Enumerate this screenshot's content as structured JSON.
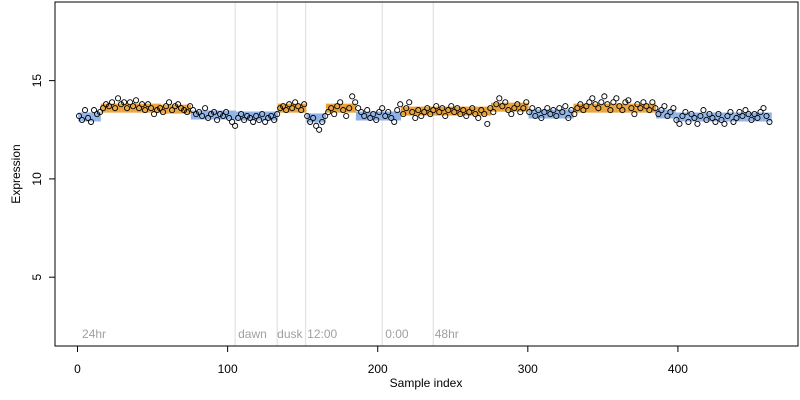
{
  "chart_data": {
    "type": "scatter",
    "title": "",
    "xlabel": "Sample index",
    "ylabel": "Expression",
    "xlim": [
      -15,
      480
    ],
    "ylim": [
      1.5,
      19
    ],
    "x_ticks": [
      0,
      100,
      200,
      300,
      400
    ],
    "y_ticks": [
      5,
      10,
      15
    ],
    "grid": false,
    "legend": "none",
    "phase_boundaries": [
      105,
      133,
      152,
      203,
      237
    ],
    "phase_labels": [
      {
        "x": 3,
        "text": "24hr"
      },
      {
        "x": 107,
        "text": "dawn"
      },
      {
        "x": 133,
        "text": "dusk"
      },
      {
        "x": 153,
        "text": "12:00"
      },
      {
        "x": 205,
        "text": "0:00"
      },
      {
        "x": 238,
        "text": "48hr"
      }
    ],
    "point_color": "#000000",
    "fit_colors": {
      "high": "#e8a33c",
      "low": "#8fb2e6"
    },
    "fit_segments": [
      {
        "x0": 1,
        "x1": 15,
        "value": 13.15,
        "level": "low"
      },
      {
        "x0": 16,
        "x1": 55,
        "value": 13.6,
        "level": "high"
      },
      {
        "x0": 56,
        "x1": 75,
        "value": 13.55,
        "level": "high"
      },
      {
        "x0": 76,
        "x1": 105,
        "value": 13.25,
        "level": "low"
      },
      {
        "x0": 106,
        "x1": 133,
        "value": 13.2,
        "level": "low"
      },
      {
        "x0": 134,
        "x1": 152,
        "value": 13.6,
        "level": "high"
      },
      {
        "x0": 153,
        "x1": 165,
        "value": 13.1,
        "level": "low"
      },
      {
        "x0": 166,
        "x1": 185,
        "value": 13.6,
        "level": "high"
      },
      {
        "x0": 186,
        "x1": 215,
        "value": 13.2,
        "level": "low"
      },
      {
        "x0": 216,
        "x1": 275,
        "value": 13.45,
        "level": "high"
      },
      {
        "x0": 276,
        "x1": 300,
        "value": 13.65,
        "level": "high"
      },
      {
        "x0": 301,
        "x1": 330,
        "value": 13.3,
        "level": "low"
      },
      {
        "x0": 331,
        "x1": 385,
        "value": 13.6,
        "level": "high"
      },
      {
        "x0": 386,
        "x1": 398,
        "value": 13.3,
        "level": "low"
      },
      {
        "x0": 399,
        "x1": 462,
        "value": 13.15,
        "level": "low"
      }
    ],
    "points": [
      [
        1,
        13.2
      ],
      [
        3,
        13.0
      ],
      [
        5,
        13.5
      ],
      [
        7,
        13.1
      ],
      [
        9,
        12.9
      ],
      [
        11,
        13.5
      ],
      [
        13,
        13.3
      ],
      [
        15,
        13.4
      ],
      [
        17,
        13.6
      ],
      [
        19,
        13.8
      ],
      [
        21,
        13.7
      ],
      [
        23,
        13.9
      ],
      [
        25,
        13.6
      ],
      [
        27,
        14.1
      ],
      [
        29,
        13.8
      ],
      [
        31,
        13.9
      ],
      [
        33,
        13.6
      ],
      [
        35,
        13.9
      ],
      [
        37,
        13.7
      ],
      [
        39,
        14.0
      ],
      [
        41,
        13.6
      ],
      [
        43,
        13.8
      ],
      [
        45,
        13.5
      ],
      [
        47,
        13.8
      ],
      [
        49,
        13.6
      ],
      [
        51,
        13.3
      ],
      [
        53,
        13.5
      ],
      [
        55,
        13.6
      ],
      [
        57,
        13.4
      ],
      [
        59,
        13.7
      ],
      [
        61,
        13.9
      ],
      [
        63,
        13.5
      ],
      [
        65,
        13.7
      ],
      [
        67,
        13.8
      ],
      [
        69,
        13.6
      ],
      [
        71,
        13.5
      ],
      [
        73,
        13.4
      ],
      [
        75,
        13.7
      ],
      [
        77,
        13.5
      ],
      [
        79,
        13.3
      ],
      [
        81,
        13.4
      ],
      [
        83,
        13.2
      ],
      [
        85,
        13.6
      ],
      [
        87,
        13.1
      ],
      [
        89,
        13.3
      ],
      [
        91,
        13.4
      ],
      [
        93,
        13.0
      ],
      [
        95,
        13.3
      ],
      [
        97,
        13.2
      ],
      [
        99,
        13.4
      ],
      [
        101,
        13.1
      ],
      [
        103,
        12.9
      ],
      [
        105,
        12.7
      ],
      [
        107,
        13.1
      ],
      [
        109,
        13.3
      ],
      [
        111,
        13.0
      ],
      [
        113,
        13.2
      ],
      [
        115,
        13.1
      ],
      [
        117,
        12.9
      ],
      [
        119,
        13.2
      ],
      [
        121,
        13.0
      ],
      [
        123,
        13.3
      ],
      [
        125,
        12.9
      ],
      [
        127,
        13.1
      ],
      [
        129,
        13.2
      ],
      [
        131,
        13.0
      ],
      [
        133,
        13.3
      ],
      [
        135,
        13.6
      ],
      [
        137,
        13.7
      ],
      [
        139,
        13.5
      ],
      [
        141,
        13.8
      ],
      [
        143,
        13.6
      ],
      [
        145,
        13.9
      ],
      [
        147,
        13.7
      ],
      [
        149,
        13.5
      ],
      [
        151,
        13.8
      ],
      [
        153,
        13.2
      ],
      [
        155,
        12.9
      ],
      [
        157,
        13.1
      ],
      [
        159,
        12.7
      ],
      [
        161,
        12.5
      ],
      [
        163,
        12.9
      ],
      [
        165,
        13.2
      ],
      [
        167,
        13.4
      ],
      [
        169,
        13.6
      ],
      [
        171,
        13.3
      ],
      [
        173,
        13.7
      ],
      [
        175,
        13.9
      ],
      [
        177,
        13.5
      ],
      [
        179,
        13.2
      ],
      [
        181,
        13.6
      ],
      [
        183,
        14.2
      ],
      [
        185,
        13.9
      ],
      [
        187,
        13.6
      ],
      [
        189,
        13.4
      ],
      [
        191,
        13.2
      ],
      [
        193,
        13.5
      ],
      [
        195,
        13.1
      ],
      [
        197,
        13.3
      ],
      [
        199,
        13.0
      ],
      [
        201,
        13.4
      ],
      [
        203,
        13.6
      ],
      [
        205,
        13.2
      ],
      [
        207,
        13.4
      ],
      [
        209,
        13.1
      ],
      [
        211,
        12.9
      ],
      [
        213,
        13.5
      ],
      [
        215,
        13.8
      ],
      [
        217,
        13.3
      ],
      [
        219,
        13.6
      ],
      [
        221,
        13.9
      ],
      [
        223,
        13.4
      ],
      [
        225,
        13.1
      ],
      [
        227,
        13.5
      ],
      [
        229,
        13.2
      ],
      [
        231,
        13.4
      ],
      [
        233,
        13.6
      ],
      [
        235,
        13.3
      ],
      [
        237,
        13.5
      ],
      [
        239,
        13.7
      ],
      [
        241,
        13.4
      ],
      [
        243,
        13.6
      ],
      [
        245,
        13.2
      ],
      [
        247,
        13.5
      ],
      [
        249,
        13.7
      ],
      [
        251,
        13.4
      ],
      [
        253,
        13.6
      ],
      [
        255,
        13.3
      ],
      [
        257,
        13.5
      ],
      [
        259,
        13.2
      ],
      [
        261,
        13.4
      ],
      [
        263,
        13.6
      ],
      [
        265,
        13.3
      ],
      [
        267,
        13.1
      ],
      [
        269,
        13.5
      ],
      [
        271,
        13.3
      ],
      [
        273,
        12.8
      ],
      [
        275,
        13.6
      ],
      [
        277,
        13.4
      ],
      [
        279,
        13.8
      ],
      [
        281,
        14.1
      ],
      [
        283,
        13.7
      ],
      [
        285,
        13.9
      ],
      [
        287,
        13.5
      ],
      [
        289,
        13.3
      ],
      [
        291,
        13.6
      ],
      [
        293,
        13.8
      ],
      [
        295,
        13.4
      ],
      [
        297,
        13.6
      ],
      [
        299,
        13.9
      ],
      [
        301,
        13.4
      ],
      [
        303,
        13.6
      ],
      [
        305,
        13.2
      ],
      [
        307,
        13.5
      ],
      [
        309,
        13.1
      ],
      [
        311,
        13.4
      ],
      [
        313,
        13.6
      ],
      [
        315,
        13.3
      ],
      [
        317,
        13.5
      ],
      [
        319,
        13.2
      ],
      [
        321,
        13.6
      ],
      [
        323,
        13.4
      ],
      [
        325,
        13.7
      ],
      [
        327,
        13.1
      ],
      [
        329,
        13.5
      ],
      [
        331,
        13.3
      ],
      [
        333,
        13.6
      ],
      [
        335,
        13.8
      ],
      [
        337,
        13.5
      ],
      [
        339,
        13.7
      ],
      [
        341,
        13.9
      ],
      [
        343,
        14.1
      ],
      [
        345,
        13.8
      ],
      [
        347,
        13.6
      ],
      [
        349,
        13.9
      ],
      [
        351,
        14.2
      ],
      [
        353,
        13.8
      ],
      [
        355,
        13.5
      ],
      [
        357,
        13.9
      ],
      [
        359,
        14.1
      ],
      [
        361,
        13.7
      ],
      [
        363,
        13.5
      ],
      [
        365,
        13.9
      ],
      [
        367,
        14.0
      ],
      [
        369,
        13.6
      ],
      [
        371,
        13.3
      ],
      [
        373,
        13.8
      ],
      [
        375,
        13.6
      ],
      [
        377,
        13.9
      ],
      [
        379,
        13.7
      ],
      [
        381,
        13.5
      ],
      [
        383,
        13.9
      ],
      [
        385,
        13.6
      ],
      [
        387,
        13.3
      ],
      [
        389,
        13.5
      ],
      [
        391,
        13.7
      ],
      [
        393,
        13.2
      ],
      [
        395,
        13.4
      ],
      [
        397,
        13.6
      ],
      [
        399,
        13.0
      ],
      [
        401,
        12.8
      ],
      [
        403,
        13.2
      ],
      [
        405,
        13.4
      ],
      [
        407,
        12.9
      ],
      [
        409,
        13.3
      ],
      [
        411,
        13.1
      ],
      [
        413,
        12.8
      ],
      [
        415,
        13.2
      ],
      [
        417,
        13.5
      ],
      [
        419,
        13.0
      ],
      [
        421,
        13.3
      ],
      [
        423,
        13.1
      ],
      [
        425,
        12.9
      ],
      [
        427,
        13.3
      ],
      [
        429,
        13.0
      ],
      [
        431,
        12.8
      ],
      [
        433,
        13.2
      ],
      [
        435,
        13.4
      ],
      [
        437,
        12.9
      ],
      [
        439,
        13.1
      ],
      [
        441,
        13.4
      ],
      [
        443,
        13.2
      ],
      [
        445,
        13.5
      ],
      [
        447,
        13.3
      ],
      [
        449,
        13.0
      ],
      [
        451,
        13.3
      ],
      [
        453,
        13.1
      ],
      [
        455,
        13.4
      ],
      [
        457,
        13.6
      ],
      [
        459,
        13.2
      ],
      [
        461,
        12.9
      ]
    ]
  }
}
